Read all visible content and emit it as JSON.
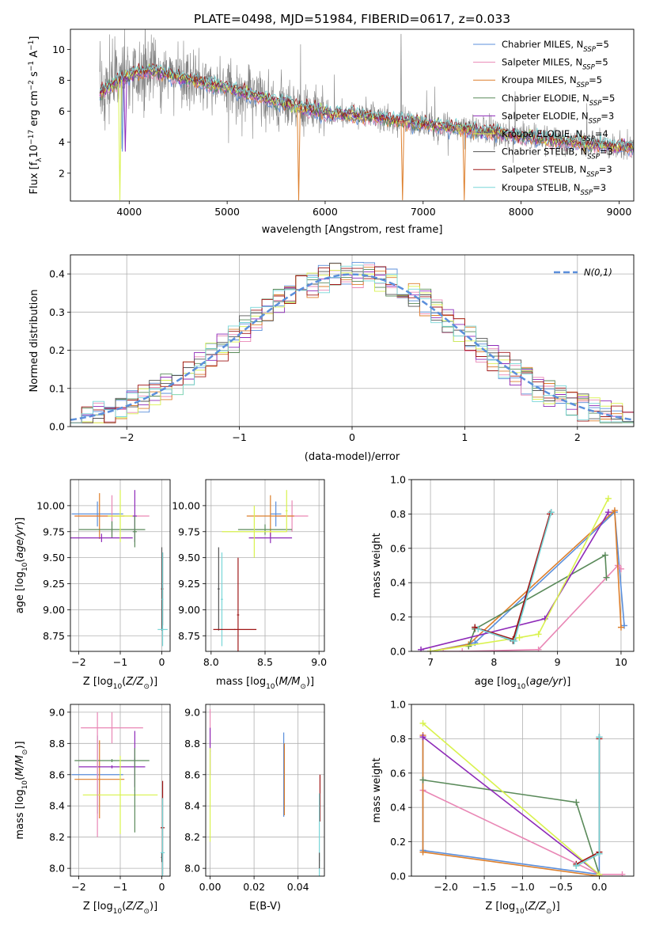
{
  "colors": {
    "Chabrier MILES": "#5b8fdb",
    "Salpeter MILES": "#e987b5",
    "Kroupa MILES": "#dd7f2c",
    "Chabrier ELODIE": "#5a8a5a",
    "Salpeter ELODIE": "#8e2ab8",
    "Kroupa ELODIE": "#d9f24e",
    "Chabrier STELIB": "#555555",
    "Salpeter STELIB": "#a01818",
    "Kroupa STELIB": "#78d6d8",
    "data": "#808080",
    "normal": "#5b8fdb"
  },
  "chart_data": [
    {
      "id": "spectrum",
      "type": "line",
      "title": "PLATE=0498, MJD=51984, FIBERID=0617, z=0.033",
      "xlabel": "wavelength [Angstrom, rest frame]",
      "ylabel": "Flux [f_λ 10^-17 erg cm^-2 s^-1 A^-1]",
      "xlim": [
        3400,
        9150
      ],
      "ylim": [
        0.2,
        11.3
      ],
      "xticks": [
        4000,
        5000,
        6000,
        7000,
        8000,
        9000
      ],
      "yticks": [
        2,
        4,
        6,
        8,
        10
      ],
      "legend_position": "top-right",
      "legend": [
        {
          "model": "Chabrier MILES",
          "label": "Chabrier MILES, N",
          "sub": "SSP",
          "eq": "=5"
        },
        {
          "model": "Salpeter MILES",
          "label": "Salpeter MILES, N",
          "sub": "SSP",
          "eq": "=5"
        },
        {
          "model": "Kroupa MILES",
          "label": "Kroupa MILES, N",
          "sub": "SSP",
          "eq": "=5"
        },
        {
          "model": "Chabrier ELODIE",
          "label": "Chabrier ELODIE, N",
          "sub": "SSP",
          "eq": "=5"
        },
        {
          "model": "Salpeter ELODIE",
          "label": "Salpeter ELODIE, N",
          "sub": "SSP",
          "eq": "=3"
        },
        {
          "model": "Kroupa ELODIE",
          "label": "Kroupa ELODIE, N",
          "sub": "SSP",
          "eq": "=4"
        },
        {
          "model": "Chabrier STELIB",
          "label": "Chabrier STELIB, N",
          "sub": "SSP",
          "eq": "=3"
        },
        {
          "model": "Salpeter STELIB",
          "label": "Salpeter STELIB, N",
          "sub": "SSP",
          "eq": "=3"
        },
        {
          "model": "Kroupa STELIB",
          "label": "Kroupa STELIB, N",
          "sub": "SSP",
          "eq": "=3"
        }
      ],
      "continuum": [
        [
          3700,
          7.1
        ],
        [
          3800,
          7.7
        ],
        [
          4000,
          8.3
        ],
        [
          4200,
          8.6
        ],
        [
          4500,
          8.2
        ],
        [
          5000,
          7.5
        ],
        [
          5500,
          6.6
        ],
        [
          6000,
          5.9
        ],
        [
          6500,
          5.6
        ],
        [
          7000,
          5.2
        ],
        [
          7500,
          4.8
        ],
        [
          8000,
          4.4
        ],
        [
          8500,
          4.0
        ],
        [
          9000,
          3.7
        ],
        [
          9150,
          3.6
        ]
      ],
      "dips": [
        {
          "model": "Chabrier MILES",
          "x": 3930,
          "y": 3.4
        },
        {
          "model": "Kroupa MILES",
          "x": 5730,
          "y": 0.25
        },
        {
          "model": "Kroupa MILES",
          "x": 6790,
          "y": 0.25
        },
        {
          "model": "Kroupa MILES",
          "x": 7420,
          "y": 0.25
        },
        {
          "model": "Kroupa ELODIE",
          "x": 3905,
          "y": 0.25
        },
        {
          "model": "Salpeter ELODIE",
          "x": 3960,
          "y": 3.4
        }
      ]
    },
    {
      "id": "residuals",
      "type": "histogram",
      "xlabel": "(data-model)/error",
      "ylabel": "Normed distribution",
      "xlim": [
        -2.5,
        2.5
      ],
      "ylim": [
        0,
        0.45
      ],
      "xticks": [
        -2,
        -1,
        0,
        1,
        2
      ],
      "yticks": [
        0.0,
        0.1,
        0.2,
        0.3,
        0.4
      ],
      "legend_position": "top-right",
      "reference_label": "N(0,1)",
      "reference_mean": 0,
      "reference_sigma": 1,
      "bin_width": 0.1
    },
    {
      "id": "age-vs-Z",
      "type": "errorbar",
      "xlabel": "Z [log10(Z/Z⊙)]",
      "ylabel": "age [log10(age/yr)]",
      "xlim": [
        -2.2,
        0.2
      ],
      "ylim": [
        8.6,
        10.25
      ],
      "xticks": [
        -2,
        -1,
        0
      ],
      "yticks": [
        8.75,
        9.0,
        9.25,
        9.5,
        9.75,
        10.0
      ],
      "points": [
        {
          "model": "Chabrier MILES",
          "x": -1.55,
          "y": 9.92,
          "xerr": 0.62,
          "yerr": 0.12
        },
        {
          "model": "Salpeter MILES",
          "x": -1.2,
          "y": 9.9,
          "xerr": 0.9,
          "yerr": 0.2
        },
        {
          "model": "Kroupa MILES",
          "x": -1.5,
          "y": 9.9,
          "xerr": 0.6,
          "yerr": 0.22
        },
        {
          "model": "Chabrier ELODIE",
          "x": -1.2,
          "y": 9.77,
          "xerr": 0.8,
          "yerr": 0.08
        },
        {
          "model": "Salpeter ELODIE",
          "x": -1.45,
          "y": 9.69,
          "xerr": 0.75,
          "yerr": 0.04
        },
        {
          "model": "Kroupa ELODIE",
          "x": -1.0,
          "y": 9.9,
          "xerr": 0.3,
          "yerr": 0.25
        },
        {
          "model": "Chabrier STELIB",
          "x": 0.0,
          "y": 9.2,
          "xerr": 0.02,
          "yerr": 0.4
        },
        {
          "model": "Salpeter STELIB",
          "x": 0.02,
          "y": 9.2,
          "xerr": 0.02,
          "yerr": 0.35
        },
        {
          "model": "Kroupa STELIB",
          "x": 0.02,
          "y": 9.1,
          "xerr": 0.02,
          "yerr": 0.45
        },
        {
          "model": "Salpeter ELODIE",
          "x": -0.65,
          "y": 9.9,
          "xerr": 0.05,
          "yerr": 0.25
        },
        {
          "model": "Chabrier ELODIE",
          "x": -0.65,
          "y": 9.75,
          "xerr": 0.05,
          "yerr": 0.15
        },
        {
          "model": "Kroupa STELIB",
          "x": 0.02,
          "y": 8.81,
          "xerr": 0.12,
          "yerr": 0.01
        }
      ]
    },
    {
      "id": "age-vs-mass",
      "type": "errorbar",
      "xlabel": "mass [log10(M/M⊙)]",
      "ylabel": "",
      "xlim": [
        7.95,
        9.05
      ],
      "ylim": [
        8.6,
        10.25
      ],
      "xticks": [
        8.0,
        8.5,
        9.0
      ],
      "yticks": [
        8.75,
        9.0,
        9.25,
        9.5,
        9.75,
        10.0
      ],
      "points": [
        {
          "model": "Chabrier MILES",
          "x": 8.6,
          "y": 9.92,
          "xerr": 0.05,
          "yerr": 0.12
        },
        {
          "model": "Salpeter MILES",
          "x": 8.75,
          "y": 9.9,
          "xerr": 0.15,
          "yerr": 0.15
        },
        {
          "model": "Kroupa MILES",
          "x": 8.55,
          "y": 9.9,
          "xerr": 0.22,
          "yerr": 0.2
        },
        {
          "model": "Chabrier ELODIE",
          "x": 8.5,
          "y": 9.77,
          "xerr": 0.25,
          "yerr": 0.05
        },
        {
          "model": "Salpeter ELODIE",
          "x": 8.55,
          "y": 9.69,
          "xerr": 0.2,
          "yerr": 0.05
        },
        {
          "model": "Kroupa ELODIE",
          "x": 8.4,
          "y": 9.75,
          "xerr": 0.3,
          "yerr": 0.25
        },
        {
          "model": "Chabrier STELIB",
          "x": 8.07,
          "y": 9.2,
          "xerr": 0.01,
          "yerr": 0.4
        },
        {
          "model": "Salpeter STELIB",
          "x": 8.25,
          "y": 8.95,
          "xerr": 0.01,
          "yerr": 0.55
        },
        {
          "model": "Kroupa STELIB",
          "x": 8.1,
          "y": 9.1,
          "xerr": 0.01,
          "yerr": 0.45
        },
        {
          "model": "Salpeter STELIB",
          "x": 8.22,
          "y": 8.81,
          "xerr": 0.2,
          "yerr": 0.005
        },
        {
          "model": "Kroupa ELODIE",
          "x": 8.7,
          "y": 9.95,
          "xerr": 0.01,
          "yerr": 0.2
        }
      ]
    },
    {
      "id": "weight-vs-age",
      "type": "line",
      "xlabel": "age [log10(age/yr)]",
      "ylabel": "mass weight",
      "xlim": [
        6.7,
        10.2
      ],
      "ylim": [
        0,
        1
      ],
      "xticks": [
        7,
        8,
        9,
        10
      ],
      "yticks": [
        0.0,
        0.2,
        0.4,
        0.6,
        0.8,
        1.0
      ],
      "series": [
        {
          "model": "Chabrier MILES",
          "points": [
            [
              7.0,
              0.0
            ],
            [
              7.7,
              0.05
            ],
            [
              9.9,
              0.81
            ],
            [
              10.05,
              0.15
            ]
          ]
        },
        {
          "model": "Salpeter MILES",
          "points": [
            [
              7.2,
              0.0
            ],
            [
              7.5,
              0.0
            ],
            [
              8.7,
              0.01
            ],
            [
              9.95,
              0.5
            ],
            [
              10.0,
              0.48
            ]
          ]
        },
        {
          "model": "Kroupa MILES",
          "points": [
            [
              7.0,
              0.0
            ],
            [
              7.6,
              0.04
            ],
            [
              9.9,
              0.82
            ],
            [
              10.0,
              0.14
            ]
          ]
        },
        {
          "model": "Chabrier ELODIE",
          "points": [
            [
              7.6,
              0.03
            ],
            [
              7.7,
              0.13
            ],
            [
              9.75,
              0.56
            ],
            [
              9.77,
              0.43
            ]
          ]
        },
        {
          "model": "Salpeter ELODIE",
          "points": [
            [
              6.85,
              0.01
            ],
            [
              8.8,
              0.19
            ],
            [
              9.8,
              0.81
            ]
          ]
        },
        {
          "model": "Kroupa ELODIE",
          "points": [
            [
              7.0,
              0.0
            ],
            [
              8.4,
              0.08
            ],
            [
              8.7,
              0.1
            ],
            [
              9.8,
              0.89
            ]
          ]
        },
        {
          "model": "Chabrier STELIB",
          "points": [
            [
              7.7,
              0.14
            ],
            [
              8.3,
              0.06
            ],
            [
              8.9,
              0.81
            ]
          ]
        },
        {
          "model": "Salpeter STELIB",
          "points": [
            [
              7.7,
              0.14
            ],
            [
              8.3,
              0.07
            ],
            [
              8.88,
              0.8
            ]
          ]
        },
        {
          "model": "Kroupa STELIB",
          "points": [
            [
              7.75,
              0.13
            ],
            [
              8.32,
              0.06
            ],
            [
              8.9,
              0.81
            ]
          ]
        }
      ]
    },
    {
      "id": "mass-vs-Z",
      "type": "errorbar",
      "xlabel": "Z [log10(Z/Z⊙)]",
      "ylabel": "mass [log10(M/M⊙)]",
      "xlim": [
        -2.2,
        0.2
      ],
      "ylim": [
        7.95,
        9.05
      ],
      "xticks": [
        -2,
        -1,
        0
      ],
      "yticks": [
        8.0,
        8.2,
        8.4,
        8.6,
        8.8,
        9.0
      ],
      "points": [
        {
          "model": "Chabrier MILES",
          "x": -1.55,
          "y": 8.6,
          "xerr": 0.62,
          "yerr": 0.25
        },
        {
          "model": "Salpeter MILES",
          "x": -1.2,
          "y": 8.9,
          "xerr": 0.75,
          "yerr": 0.1
        },
        {
          "model": "Kroupa MILES",
          "x": -1.5,
          "y": 8.57,
          "xerr": 0.6,
          "yerr": 0.25
        },
        {
          "model": "Chabrier ELODIE",
          "x": -1.2,
          "y": 8.69,
          "xerr": 0.9,
          "yerr": 0.01
        },
        {
          "model": "Salpeter ELODIE",
          "x": -1.2,
          "y": 8.65,
          "xerr": 0.8,
          "yerr": 0.01
        },
        {
          "model": "Kroupa ELODIE",
          "x": -1.0,
          "y": 8.47,
          "xerr": 0.9,
          "yerr": 0.25
        },
        {
          "model": "Chabrier STELIB",
          "x": 0.0,
          "y": 8.07,
          "xerr": 0.02,
          "yerr": 0.03
        },
        {
          "model": "Salpeter STELIB",
          "x": 0.02,
          "y": 8.26,
          "xerr": 0.05,
          "yerr": 0.3
        },
        {
          "model": "Kroupa STELIB",
          "x": 0.02,
          "y": 8.1,
          "xerr": 0.05,
          "yerr": 0.35
        },
        {
          "model": "Salpeter ELODIE",
          "x": -0.65,
          "y": 8.7,
          "xerr": 0.01,
          "yerr": 0.18
        },
        {
          "model": "Chabrier ELODIE",
          "x": -0.65,
          "y": 8.5,
          "xerr": 0.01,
          "yerr": 0.27
        },
        {
          "model": "Salpeter MILES",
          "x": -1.55,
          "y": 8.6,
          "xerr": 0.01,
          "yerr": 0.4
        }
      ]
    },
    {
      "id": "mass-vs-ebv",
      "type": "errorbar",
      "xlabel": "E(B-V)",
      "ylabel": "",
      "xlim": [
        -0.002,
        0.052
      ],
      "ylim": [
        7.95,
        9.05
      ],
      "xticks": [
        0.0,
        0.02,
        0.04
      ],
      "yticks": [
        8.0,
        8.2,
        8.4,
        8.6,
        8.8,
        9.0
      ],
      "points": [
        {
          "model": "Salpeter MILES",
          "x": 0.0,
          "y": 8.9,
          "xerr": 0.0002,
          "yerr": 0.12
        },
        {
          "model": "Salpeter ELODIE",
          "x": 0.0,
          "y": 8.75,
          "xerr": 0.0002,
          "yerr": 0.15
        },
        {
          "model": "Kroupa ELODIE",
          "x": 0.0,
          "y": 8.47,
          "xerr": 0.0002,
          "yerr": 0.3
        },
        {
          "model": "Chabrier MILES",
          "x": 0.0335,
          "y": 8.6,
          "xerr": 0.0002,
          "yerr": 0.27
        },
        {
          "model": "Kroupa MILES",
          "x": 0.0338,
          "y": 8.57,
          "xerr": 0.0002,
          "yerr": 0.23
        },
        {
          "model": "Salpeter STELIB",
          "x": 0.05,
          "y": 8.45,
          "xerr": 0.0002,
          "yerr": 0.15
        },
        {
          "model": "Kroupa STELIB",
          "x": 0.0497,
          "y": 8.2,
          "xerr": 0.0002,
          "yerr": 0.28
        },
        {
          "model": "Chabrier STELIB",
          "x": 0.0497,
          "y": 8.05,
          "xerr": 0.0002,
          "yerr": 0.05
        }
      ]
    },
    {
      "id": "weight-vs-Z",
      "type": "line",
      "xlabel": "Z [log10(Z/Z⊙)]",
      "ylabel": "mass weight",
      "xlim": [
        -2.45,
        0.45
      ],
      "ylim": [
        0,
        1
      ],
      "xticks": [
        -2.0,
        -1.5,
        -1.0,
        -0.5,
        0.0
      ],
      "yticks": [
        0.0,
        0.2,
        0.4,
        0.6,
        0.8,
        1.0
      ],
      "series": [
        {
          "model": "Chabrier MILES",
          "points": [
            [
              -2.3,
              0.81
            ],
            [
              -2.3,
              0.15
            ],
            [
              0.0,
              0.01
            ],
            [
              0.0,
              0.81
            ]
          ]
        },
        {
          "model": "Salpeter MILES",
          "points": [
            [
              -2.3,
              0.5
            ],
            [
              0.0,
              0.01
            ],
            [
              0.3,
              0.01
            ]
          ]
        },
        {
          "model": "Kroupa MILES",
          "points": [
            [
              -2.3,
              0.82
            ],
            [
              -2.3,
              0.14
            ],
            [
              0.0,
              0.0
            ]
          ]
        },
        {
          "model": "Chabrier ELODIE",
          "points": [
            [
              -2.3,
              0.56
            ],
            [
              -0.3,
              0.43
            ],
            [
              0.0,
              0.01
            ]
          ]
        },
        {
          "model": "Salpeter ELODIE",
          "points": [
            [
              -2.3,
              0.81
            ],
            [
              0.0,
              0.01
            ]
          ]
        },
        {
          "model": "Kroupa ELODIE",
          "points": [
            [
              -2.3,
              0.89
            ],
            [
              0.0,
              0.01
            ]
          ]
        },
        {
          "model": "Chabrier STELIB",
          "points": [
            [
              -0.3,
              0.06
            ],
            [
              0.0,
              0.13
            ],
            [
              0.0,
              0.81
            ]
          ]
        },
        {
          "model": "Salpeter STELIB",
          "points": [
            [
              -0.3,
              0.07
            ],
            [
              0.0,
              0.14
            ],
            [
              0.0,
              0.8
            ]
          ]
        },
        {
          "model": "Kroupa STELIB",
          "points": [
            [
              -0.3,
              0.06
            ],
            [
              0.0,
              0.13
            ],
            [
              0.0,
              0.81
            ]
          ]
        }
      ]
    }
  ]
}
